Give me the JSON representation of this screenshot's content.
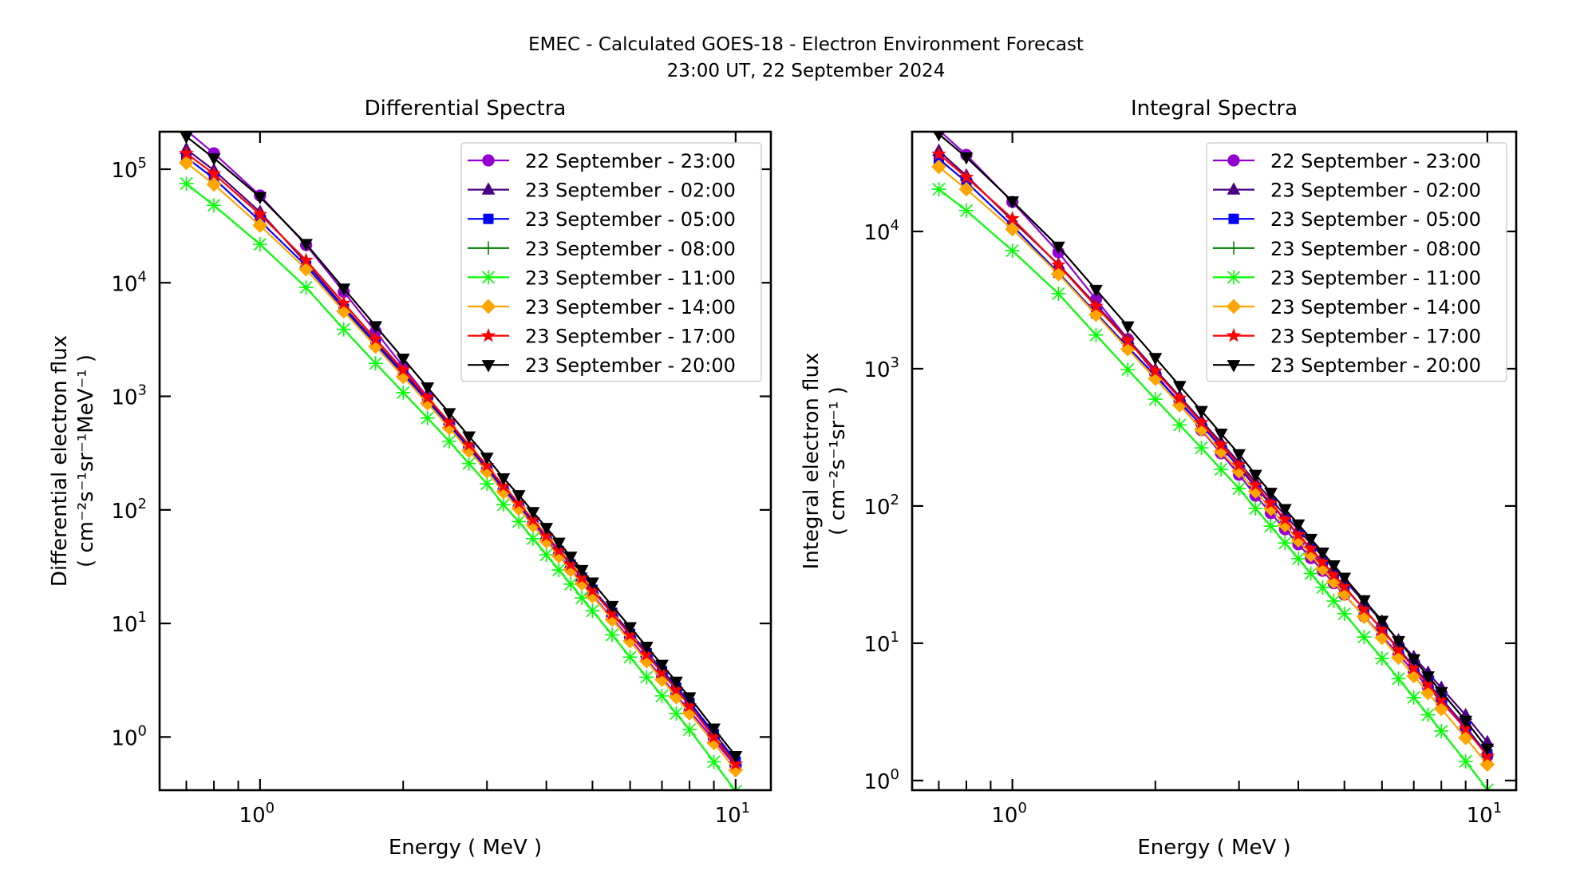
{
  "figure": {
    "title_line1": "EMEC - Calculated GOES-18 - Electron Environment Forecast",
    "title_line2": "23:00 UT, 22 September 2024"
  },
  "chart_data": [
    {
      "id": "differential",
      "type": "line",
      "title": "Differential Spectra",
      "xlabel": "Energy ( MeV )",
      "ylabel_line1": "Differential electron flux",
      "ylabel_line2": "( cm⁻²s⁻¹sr⁻¹MeV⁻¹ )",
      "xscale": "log",
      "yscale": "log",
      "xlim": [
        0.615,
        11.86
      ],
      "ylim": [
        0.34,
        214000
      ],
      "xticks": [
        {
          "value": 1,
          "base": "10",
          "exp": "0"
        },
        {
          "value": 10,
          "base": "10",
          "exp": "1"
        }
      ],
      "yticks": [
        {
          "value": 1,
          "base": "10",
          "exp": "0"
        },
        {
          "value": 10,
          "base": "10",
          "exp": "1"
        },
        {
          "value": 100,
          "base": "10",
          "exp": "2"
        },
        {
          "value": 1000,
          "base": "10",
          "exp": "3"
        },
        {
          "value": 10000,
          "base": "10",
          "exp": "4"
        },
        {
          "value": 100000,
          "base": "10",
          "exp": "5"
        }
      ],
      "legend_position": "top-right",
      "grid": false,
      "x": [
        0.7,
        0.8,
        1.0,
        1.25,
        1.5,
        1.75,
        2.0,
        2.25,
        2.5,
        2.75,
        3.0,
        3.25,
        3.5,
        3.75,
        4.0,
        4.25,
        4.5,
        4.75,
        5.0,
        5.5,
        6.0,
        6.5,
        7.0,
        7.5,
        8.0,
        9.0,
        10.0
      ],
      "series": [
        {
          "name": "22 September - 23:00",
          "color": "#9400D3",
          "marker": "circle",
          "values": [
            220000,
            138000,
            58600,
            21500,
            8320,
            3710,
            1830,
            986,
            573,
            353,
            227,
            149,
            106,
            75.3,
            54.6,
            40.2,
            30.1,
            23.0,
            17.8,
            11.1,
            7.29,
            4.85,
            3.33,
            2.34,
            1.7,
            0.946,
            0.553
          ]
        },
        {
          "name": "23 September - 02:00",
          "color": "#4B0082",
          "marker": "triangle-up",
          "values": [
            150000,
            97900,
            42000,
            15000,
            6170,
            3010,
            1630,
            953,
            573,
            361,
            235,
            156,
            112,
            80.7,
            59.2,
            44.4,
            33.8,
            25.8,
            20.2,
            12.7,
            8.28,
            5.6,
            3.9,
            2.78,
            2.03,
            1.09,
            0.621
          ]
        },
        {
          "name": "23 September - 05:00",
          "color": "#0000FF",
          "marker": "square",
          "values": [
            127000,
            83000,
            35000,
            14100,
            5890,
            2880,
            1560,
            910,
            553,
            349,
            230,
            153,
            110,
            78.9,
            57.8,
            43.4,
            33.0,
            25.4,
            19.8,
            12.4,
            8.09,
            5.47,
            3.81,
            2.72,
            1.99,
            1.06,
            0.607
          ]
        },
        {
          "name": "23 September - 08:00",
          "color": "#008000",
          "marker": "plus",
          "values": []
        },
        {
          "name": "23 September - 11:00",
          "color": "#00FF00",
          "marker": "x",
          "values": [
            74600,
            48000,
            21800,
            9100,
            3890,
            1950,
            1080,
            644,
            401,
            256,
            170,
            111,
            78.9,
            55.8,
            40.2,
            29.6,
            22.2,
            16.8,
            12.9,
            7.93,
            5.05,
            3.36,
            2.3,
            1.61,
            1.16,
            0.604,
            0.333
          ]
        },
        {
          "name": "23 September - 14:00",
          "color": "#FFA500",
          "marker": "diamond",
          "values": [
            114000,
            73500,
            32000,
            13200,
            5620,
            2750,
            1490,
            869,
            528,
            333,
            219,
            144,
            103,
            73.3,
            53.1,
            39.3,
            29.6,
            22.5,
            17.4,
            10.8,
            7.0,
            4.66,
            3.2,
            2.25,
            1.62,
            0.889,
            0.511
          ]
        },
        {
          "name": "23 September - 17:00",
          "color": "#FF0000",
          "marker": "star",
          "values": [
            138000,
            91000,
            40000,
            15800,
            6610,
            3190,
            1710,
            975,
            593,
            374,
            246,
            162,
            115,
            81.7,
            59.2,
            43.9,
            33.0,
            25.2,
            19.5,
            12.2,
            7.91,
            5.32,
            3.69,
            2.62,
            1.88,
            1.0,
            0.579
          ]
        },
        {
          "name": "23 September - 20:00",
          "color": "#000000",
          "marker": "triangle-down",
          "values": [
            194000,
            125000,
            57000,
            22000,
            8910,
            4160,
            2150,
            1200,
            713,
            445,
            289,
            190,
            135,
            95.9,
            69.5,
            51.5,
            38.8,
            29.6,
            23.0,
            14.3,
            9.29,
            6.25,
            4.33,
            3.08,
            2.24,
            1.19,
            0.681
          ]
        }
      ]
    },
    {
      "id": "integral",
      "type": "line",
      "title": "Integral Spectra",
      "xlabel": "Energy ( MeV )",
      "ylabel_line1": "Integral electron flux",
      "ylabel_line2": "( cm⁻²s⁻¹sr⁻¹ )",
      "xscale": "log",
      "yscale": "log",
      "xlim": [
        0.615,
        11.5
      ],
      "ylim": [
        0.85,
        53300
      ],
      "xticks": [
        {
          "value": 1,
          "base": "10",
          "exp": "0"
        },
        {
          "value": 10,
          "base": "10",
          "exp": "1"
        }
      ],
      "yticks": [
        {
          "value": 1,
          "base": "10",
          "exp": "0"
        },
        {
          "value": 10,
          "base": "10",
          "exp": "1"
        },
        {
          "value": 100,
          "base": "10",
          "exp": "2"
        },
        {
          "value": 1000,
          "base": "10",
          "exp": "3"
        },
        {
          "value": 10000,
          "base": "10",
          "exp": "4"
        }
      ],
      "legend_position": "top-right",
      "grid": false,
      "x": [
        0.7,
        0.8,
        1.0,
        1.25,
        1.5,
        1.75,
        2.0,
        2.25,
        2.5,
        2.75,
        3.0,
        3.25,
        3.5,
        3.75,
        4.0,
        4.25,
        4.5,
        4.75,
        5.0,
        5.5,
        6.0,
        6.5,
        7.0,
        7.5,
        8.0,
        9.0,
        10.0
      ],
      "series": [
        {
          "name": "22 September - 23:00",
          "color": "#9400D3",
          "marker": "circle",
          "values": [
            54800,
            36100,
            16400,
            7060,
            3200,
            1640,
            918,
            556,
            357,
            242,
            169,
            119,
            88.7,
            67.6,
            52.6,
            41.8,
            33.7,
            27.4,
            22.6,
            15.7,
            11.3,
            8.28,
            6.22,
            4.79,
            3.76,
            2.38,
            1.52
          ]
        },
        {
          "name": "23 September - 02:00",
          "color": "#4B0082",
          "marker": "triangle-up",
          "values": [
            38600,
            25500,
            12000,
            5750,
            2920,
            1640,
            984,
            627,
            418,
            290,
            208,
            149,
            112,
            85.7,
            67.0,
            53.2,
            42.9,
            34.9,
            28.8,
            20.0,
            14.4,
            10.5,
            7.93,
            6.1,
            4.73,
            2.99,
            1.9
          ]
        },
        {
          "name": "23 September - 05:00",
          "color": "#0000FF",
          "marker": "square",
          "values": [
            33800,
            22900,
            11000,
            5010,
            2540,
            1440,
            887,
            575,
            387,
            268,
            192,
            137,
            103,
            79.1,
            61.4,
            48.4,
            38.7,
            31.3,
            25.6,
            17.7,
            12.6,
            9.12,
            6.76,
            5.13,
            3.95,
            2.46,
            1.55
          ]
        },
        {
          "name": "23 September - 08:00",
          "color": "#008000",
          "marker": "plus",
          "values": []
        },
        {
          "name": "23 September - 11:00",
          "color": "#00FF00",
          "marker": "x",
          "values": [
            20300,
            14200,
            7240,
            3520,
            1760,
            986,
            600,
            389,
            265,
            185,
            134,
            95.9,
            71.3,
            53.8,
            41.3,
            32.2,
            25.5,
            20.3,
            16.4,
            11.1,
            7.76,
            5.52,
            4.03,
            3.01,
            2.29,
            1.38,
            0.857
          ]
        },
        {
          "name": "23 September - 14:00",
          "color": "#FFA500",
          "marker": "diamond",
          "values": [
            29600,
            20300,
            10400,
            4900,
            2480,
            1390,
            847,
            543,
            361,
            250,
            179,
            128,
            95.5,
            72.6,
            56.2,
            44.1,
            35.0,
            28.1,
            22.9,
            15.6,
            11.0,
            7.87,
            5.78,
            4.35,
            3.33,
            2.05,
            1.31
          ]
        },
        {
          "name": "23 September - 17:00",
          "color": "#FF0000",
          "marker": "star",
          "values": [
            36600,
            24800,
            12400,
            5700,
            2850,
            1600,
            962,
            610,
            406,
            279,
            199,
            142,
            105,
            80.0,
            61.8,
            48.9,
            39.1,
            31.6,
            25.9,
            17.7,
            12.6,
            8.99,
            6.61,
            5.01,
            3.86,
            2.39,
            1.51
          ]
        },
        {
          "name": "23 September - 20:00",
          "color": "#000000",
          "marker": "triangle-down",
          "values": [
            51200,
            34700,
            16600,
            7760,
            3760,
            2040,
            1200,
            750,
            493,
            337,
            239,
            169,
            125,
            95.1,
            73.5,
            57.7,
            45.9,
            37.0,
            30.1,
            20.6,
            14.6,
            10.4,
            7.66,
            5.75,
            4.42,
            2.73,
            1.71
          ]
        }
      ]
    }
  ]
}
